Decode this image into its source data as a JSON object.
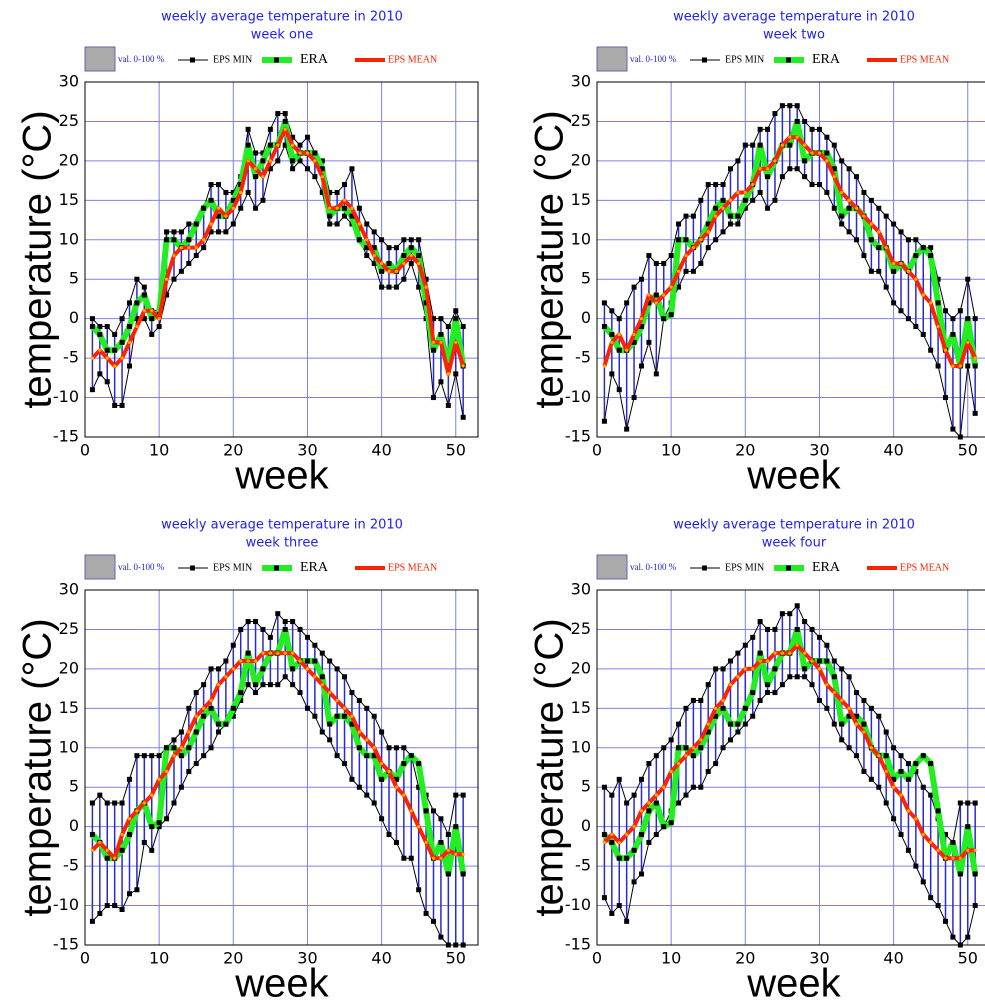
{
  "chart_data": [
    {
      "type": "line",
      "title": "weekly average temperature in 2010",
      "subtitle": "week one",
      "xlabel": "week",
      "ylabel": "temperature (°C)",
      "range_label": "val. 0-100 %",
      "range_color": "#aaaaaa",
      "xlim": [
        0,
        53
      ],
      "ylim": [
        -15,
        30
      ],
      "xticks": [
        0,
        10,
        20,
        30,
        40,
        50
      ],
      "yticks": [
        -15,
        -10,
        -5,
        0,
        5,
        10,
        15,
        20,
        25,
        30
      ],
      "grid": true,
      "x": [
        1,
        2,
        3,
        4,
        5,
        6,
        7,
        8,
        9,
        10,
        11,
        12,
        13,
        14,
        15,
        16,
        17,
        18,
        19,
        20,
        21,
        22,
        23,
        24,
        25,
        26,
        27,
        28,
        29,
        30,
        31,
        32,
        33,
        34,
        35,
        36,
        37,
        38,
        39,
        40,
        41,
        42,
        43,
        44,
        45,
        46,
        47,
        48,
        49,
        50,
        51
      ],
      "series": [
        {
          "name": "EPS MIN",
          "color": "#000000",
          "values": [
            -9,
            -7,
            -8,
            -11,
            -11,
            -6,
            0,
            0,
            -2,
            -1,
            3,
            5,
            6,
            7,
            8,
            9,
            11,
            11,
            11,
            12,
            14,
            16,
            14,
            15,
            19,
            20,
            22,
            19,
            20,
            19,
            18,
            16,
            12,
            12,
            13,
            12,
            10,
            8,
            7,
            4,
            4,
            4,
            5,
            7,
            4,
            0,
            -10,
            -8,
            -11,
            -7,
            -12.5
          ]
        },
        {
          "color": "#000000",
          "values": [
            0,
            -1,
            -1,
            -2,
            0,
            2,
            5,
            4,
            1,
            1,
            11,
            11,
            11,
            12,
            12,
            14,
            17,
            17,
            16,
            16,
            18,
            24,
            21,
            21,
            24,
            26,
            26,
            23,
            22,
            23,
            21,
            20,
            16,
            16,
            17,
            19,
            14,
            12,
            11,
            10,
            9,
            9,
            10,
            10,
            10,
            5,
            0,
            0,
            -1,
            1,
            -1
          ]
        },
        {
          "name": "ERA",
          "color": "#22ee22",
          "values": [
            -1,
            -2,
            -4,
            -4,
            -3,
            -1,
            2,
            3,
            0,
            0.5,
            10,
            10,
            9,
            10,
            12,
            14,
            15,
            13,
            13,
            15,
            17,
            22,
            18,
            20,
            22,
            22,
            25,
            20,
            21,
            21,
            21,
            19,
            13,
            14,
            14,
            13,
            10,
            9,
            9,
            6,
            7,
            6,
            8,
            9,
            8,
            2,
            -4,
            -2,
            -6,
            0,
            -6
          ]
        },
        {
          "name": "EPS MEAN",
          "color": "#ff2200",
          "values": [
            -5,
            -4,
            -5,
            -6,
            -5,
            -3,
            -1,
            1,
            1,
            0,
            5,
            8,
            9,
            9,
            9,
            10,
            12,
            14,
            13,
            14,
            16,
            20,
            19,
            18,
            20,
            22,
            24,
            22,
            21,
            21,
            20,
            18,
            14,
            14,
            15,
            14,
            12,
            10,
            8,
            7,
            6,
            6,
            7,
            8,
            7,
            4,
            -3,
            -3,
            -7,
            -3,
            -6
          ]
        }
      ]
    },
    {
      "type": "line",
      "title": "weekly average temperature in 2010",
      "subtitle": "week two",
      "xlabel": "week",
      "ylabel": "temperature (°C)",
      "range_label": "val. 0-100 %",
      "range_color": "#aaaaaa",
      "xlim": [
        0,
        53
      ],
      "ylim": [
        -15,
        30
      ],
      "xticks": [
        0,
        10,
        20,
        30,
        40,
        50
      ],
      "yticks": [
        -15,
        -10,
        -5,
        0,
        5,
        10,
        15,
        20,
        25,
        30
      ],
      "grid": true,
      "x": [
        1,
        2,
        3,
        4,
        5,
        6,
        7,
        8,
        9,
        10,
        11,
        12,
        13,
        14,
        15,
        16,
        17,
        18,
        19,
        20,
        21,
        22,
        23,
        24,
        25,
        26,
        27,
        28,
        29,
        30,
        31,
        32,
        33,
        34,
        35,
        36,
        37,
        38,
        39,
        40,
        41,
        42,
        43,
        44,
        45,
        46,
        47,
        48,
        49,
        50,
        51
      ],
      "series": [
        {
          "name": "EPS MIN",
          "color": "#000000",
          "values": [
            -13,
            -7,
            -9,
            -14,
            -10,
            -6,
            -3,
            -7,
            0,
            2,
            4,
            6,
            6,
            7,
            9,
            10,
            11,
            12,
            12,
            14,
            15,
            16,
            14,
            15,
            18,
            19,
            19,
            18,
            17,
            17,
            16,
            14,
            12,
            11,
            10,
            8,
            6,
            6,
            4,
            2,
            1,
            0,
            -1,
            -2,
            -4,
            -6,
            -10,
            -14,
            -15,
            -6,
            -12
          ]
        },
        {
          "color": "#000000",
          "values": [
            2,
            1,
            0,
            2,
            4,
            5,
            8,
            7,
            7,
            8,
            12,
            13,
            13,
            15,
            17,
            17,
            17,
            19,
            20,
            22,
            22,
            24,
            24,
            26,
            27,
            27,
            27,
            25,
            24,
            24,
            23,
            22,
            20,
            19,
            18,
            16,
            15,
            14,
            13,
            12,
            11,
            10,
            10,
            9,
            9,
            5,
            1,
            0,
            1,
            5,
            0
          ]
        },
        {
          "name": "ERA",
          "color": "#22ee22",
          "values": [
            -1,
            -2,
            -4,
            -4,
            -3,
            -1,
            2,
            3,
            0,
            0.5,
            10,
            10,
            9,
            10,
            12,
            14,
            15,
            13,
            13,
            15,
            17,
            22,
            18,
            20,
            22,
            22,
            25,
            20,
            21,
            21,
            21,
            19,
            13,
            14,
            14,
            13,
            10,
            9,
            9,
            6,
            7,
            6,
            8,
            9,
            8,
            2,
            -4,
            -2,
            -6,
            0,
            -6
          ]
        },
        {
          "name": "EPS MEAN",
          "color": "#ff2200",
          "values": [
            -6,
            -3,
            -2,
            -4,
            -2,
            0,
            3,
            2,
            3,
            4,
            6,
            8,
            9,
            10,
            11,
            13,
            14,
            15,
            16,
            16,
            17,
            19,
            19,
            20,
            22,
            23,
            23,
            22,
            21,
            21,
            20,
            18,
            16,
            15,
            14,
            13,
            12,
            11,
            9,
            7,
            7,
            6,
            5,
            3,
            2,
            -1,
            -4,
            -6,
            -6,
            -3,
            -5
          ]
        }
      ]
    },
    {
      "type": "line",
      "title": "weekly average temperature in 2010",
      "subtitle": "week three",
      "xlabel": "week",
      "ylabel": "temperature (°C)",
      "range_label": "val. 0-100 %",
      "range_color": "#aaaaaa",
      "xlim": [
        0,
        53
      ],
      "ylim": [
        -15,
        30
      ],
      "xticks": [
        0,
        10,
        20,
        30,
        40,
        50
      ],
      "yticks": [
        -15,
        -10,
        -5,
        0,
        5,
        10,
        15,
        20,
        25,
        30
      ],
      "grid": true,
      "x": [
        1,
        2,
        3,
        4,
        5,
        6,
        7,
        8,
        9,
        10,
        11,
        12,
        13,
        14,
        15,
        16,
        17,
        18,
        19,
        20,
        21,
        22,
        23,
        24,
        25,
        26,
        27,
        28,
        29,
        30,
        31,
        32,
        33,
        34,
        35,
        36,
        37,
        38,
        39,
        40,
        41,
        42,
        43,
        44,
        45,
        46,
        47,
        48,
        49,
        50,
        51
      ],
      "series": [
        {
          "name": "EPS MIN",
          "color": "#000000",
          "values": [
            -12,
            -11,
            -10,
            -10,
            -10.5,
            -8.5,
            -8,
            -2,
            -3,
            0,
            1,
            3,
            5,
            7,
            8,
            9,
            10,
            12,
            13,
            14,
            16,
            18,
            17,
            18,
            18,
            18,
            19,
            18,
            17,
            15,
            14,
            12,
            11,
            9,
            8,
            6,
            5,
            4,
            3,
            1,
            -1,
            -2,
            -4,
            -4,
            -8,
            -11,
            -12,
            -14,
            -15,
            -15,
            -15
          ]
        },
        {
          "color": "#000000",
          "values": [
            3,
            4,
            3,
            3,
            3,
            6,
            9,
            9,
            9,
            9,
            10,
            11,
            12,
            15,
            17,
            18,
            20,
            20,
            21,
            23,
            25,
            26,
            26,
            25,
            24,
            27,
            26,
            26,
            25,
            24,
            23,
            22,
            21,
            20,
            19,
            17,
            16,
            15,
            14,
            12,
            10,
            10,
            10,
            9,
            5,
            4,
            2,
            1,
            -1,
            4,
            4
          ]
        },
        {
          "name": "ERA",
          "color": "#22ee22",
          "values": [
            -1,
            -2,
            -4,
            -4,
            -3,
            -1,
            2,
            3,
            0,
            0.5,
            10,
            10,
            9,
            10,
            12,
            14,
            15,
            13,
            13,
            15,
            17,
            22,
            18,
            20,
            22,
            22,
            25,
            20,
            21,
            21,
            21,
            19,
            13,
            14,
            14,
            13,
            10,
            9,
            9,
            6,
            7,
            6,
            8,
            9,
            8,
            2,
            -4,
            -2,
            -6,
            0,
            -6
          ]
        },
        {
          "name": "EPS MEAN",
          "color": "#ff2200",
          "values": [
            -3,
            -2,
            -3,
            -4,
            -1,
            1,
            2,
            3,
            4,
            6,
            7,
            9,
            10,
            12,
            14,
            15,
            16,
            18,
            19,
            20,
            21,
            21,
            21,
            22,
            22,
            22,
            22,
            22,
            21,
            20,
            19,
            18,
            17,
            16,
            15,
            14,
            12,
            11,
            10,
            8,
            7,
            5,
            4,
            2,
            0,
            -2,
            -4,
            -4,
            -3,
            -3.5,
            -3.5
          ]
        }
      ]
    },
    {
      "type": "line",
      "title": "weekly average temperature in 2010",
      "subtitle": "week four",
      "xlabel": "week",
      "ylabel": "temperature (°C)",
      "range_label": "val. 0-100 %",
      "range_color": "#aaaaaa",
      "xlim": [
        0,
        53
      ],
      "ylim": [
        -15,
        30
      ],
      "xticks": [
        0,
        10,
        20,
        30,
        40,
        50
      ],
      "yticks": [
        -15,
        -10,
        -5,
        0,
        5,
        10,
        15,
        20,
        25,
        30
      ],
      "grid": true,
      "x": [
        1,
        2,
        3,
        4,
        5,
        6,
        7,
        8,
        9,
        10,
        11,
        12,
        13,
        14,
        15,
        16,
        17,
        18,
        19,
        20,
        21,
        22,
        23,
        24,
        25,
        26,
        27,
        28,
        29,
        30,
        31,
        32,
        33,
        34,
        35,
        36,
        37,
        38,
        39,
        40,
        41,
        42,
        43,
        44,
        45,
        46,
        47,
        48,
        49,
        50,
        51
      ],
      "series": [
        {
          "name": "EPS MIN",
          "color": "#000000",
          "values": [
            -9,
            -11,
            -10,
            -12,
            -7,
            -6,
            -2,
            -1,
            0,
            2,
            3,
            4,
            5,
            5,
            7,
            8,
            10,
            11,
            12,
            13,
            14,
            16,
            17,
            17,
            18,
            19,
            19,
            19,
            18,
            16,
            15,
            13,
            11,
            10,
            9,
            7,
            6,
            5,
            3,
            1,
            -1,
            -3,
            -5,
            -7,
            -9,
            -10,
            -12,
            -14,
            -15,
            -14,
            -10
          ]
        },
        {
          "color": "#000000",
          "values": [
            5,
            4,
            6,
            3,
            4,
            6,
            8,
            9,
            10,
            11,
            13,
            15,
            16,
            16,
            18,
            20,
            20,
            21,
            22,
            23,
            24,
            26,
            25,
            25,
            27,
            27,
            28,
            26,
            25,
            24,
            23,
            21,
            20,
            19,
            17,
            16,
            15,
            14,
            12,
            10,
            9,
            8,
            7,
            5,
            4,
            1,
            -1,
            -2,
            3,
            3,
            3
          ]
        },
        {
          "name": "ERA",
          "color": "#22ee22",
          "values": [
            -1,
            -2,
            -4,
            -4,
            -3,
            -1,
            2,
            3,
            0,
            0.5,
            10,
            10,
            9,
            10,
            12,
            14,
            15,
            13,
            13,
            15,
            17,
            22,
            18,
            20,
            22,
            22,
            25,
            20,
            21,
            21,
            21,
            19,
            13,
            14,
            14,
            13,
            10,
            9,
            9,
            6,
            7,
            6,
            8,
            9,
            8,
            2,
            -4,
            -2,
            -6,
            0,
            -6
          ]
        },
        {
          "name": "EPS MEAN",
          "color": "#ff2200",
          "values": [
            -2,
            -1,
            -2,
            -1,
            0,
            2,
            3,
            4,
            5,
            7,
            8,
            9,
            10,
            11,
            13,
            15,
            16,
            18,
            19,
            20,
            20,
            21,
            21,
            22,
            22,
            22,
            23,
            22,
            21,
            20,
            18,
            17,
            16,
            15,
            13,
            12,
            10,
            9,
            7,
            5,
            4,
            2,
            1,
            -1,
            -2,
            -3,
            -4,
            -4,
            -4,
            -3,
            -3
          ]
        }
      ]
    }
  ]
}
